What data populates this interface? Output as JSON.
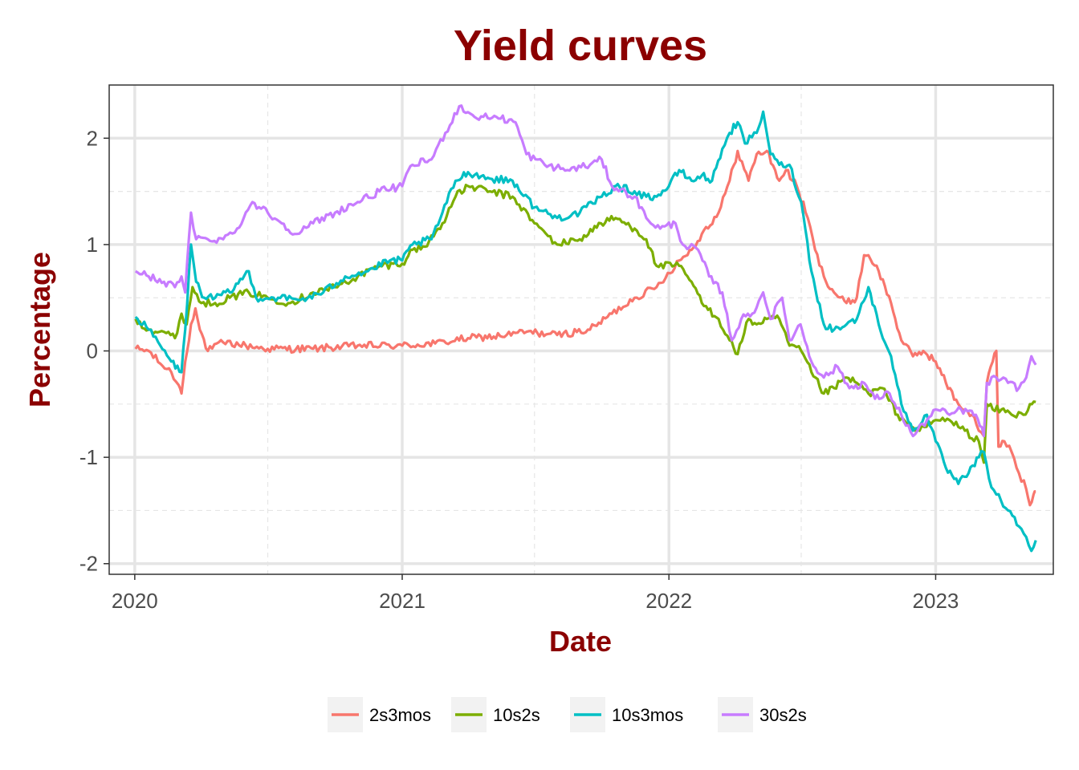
{
  "chart_data": {
    "type": "line",
    "title": "Yield curves",
    "xlabel": "Date",
    "ylabel": "Percentage",
    "x_tick_labels": [
      "2020",
      "2021",
      "2022",
      "2023"
    ],
    "y_tick_labels": [
      "-2",
      "-1",
      "0",
      "1",
      "2"
    ],
    "xlim": [
      "2019-11-27",
      "2023-06-11"
    ],
    "ylim": [
      -2.1,
      2.5
    ],
    "grid": true,
    "legend_position": "bottom",
    "series": [
      {
        "name": "2s3mos",
        "color": "#F8766D",
        "points": [
          [
            "2020-01-02",
            0.02
          ],
          [
            "2020-01-20",
            0.0
          ],
          [
            "2020-02-05",
            -0.12
          ],
          [
            "2020-02-20",
            -0.2
          ],
          [
            "2020-03-01",
            -0.32
          ],
          [
            "2020-03-05",
            -0.4
          ],
          [
            "2020-03-10",
            -0.1
          ],
          [
            "2020-03-18",
            0.25
          ],
          [
            "2020-03-24",
            0.4
          ],
          [
            "2020-03-30",
            0.2
          ],
          [
            "2020-04-10",
            0.0
          ],
          [
            "2020-05-01",
            0.08
          ],
          [
            "2020-06-01",
            0.05
          ],
          [
            "2020-07-01",
            0.02
          ],
          [
            "2020-09-01",
            0.02
          ],
          [
            "2020-11-01",
            0.05
          ],
          [
            "2021-01-01",
            0.05
          ],
          [
            "2021-02-15",
            0.07
          ],
          [
            "2021-04-01",
            0.12
          ],
          [
            "2021-05-15",
            0.14
          ],
          [
            "2021-06-20",
            0.18
          ],
          [
            "2021-08-01",
            0.15
          ],
          [
            "2021-09-15",
            0.2
          ],
          [
            "2021-10-15",
            0.35
          ],
          [
            "2021-11-15",
            0.5
          ],
          [
            "2021-12-15",
            0.6
          ],
          [
            "2022-01-15",
            0.85
          ],
          [
            "2022-02-01",
            0.95
          ],
          [
            "2022-02-15",
            1.1
          ],
          [
            "2022-03-10",
            1.3
          ],
          [
            "2022-03-25",
            1.6
          ],
          [
            "2022-04-05",
            1.88
          ],
          [
            "2022-04-20",
            1.6
          ],
          [
            "2022-05-01",
            1.85
          ],
          [
            "2022-05-15",
            1.88
          ],
          [
            "2022-06-01",
            1.6
          ],
          [
            "2022-06-10",
            1.7
          ],
          [
            "2022-06-25",
            1.55
          ],
          [
            "2022-07-10",
            1.25
          ],
          [
            "2022-07-20",
            0.95
          ],
          [
            "2022-08-01",
            0.7
          ],
          [
            "2022-08-15",
            0.55
          ],
          [
            "2022-09-01",
            0.45
          ],
          [
            "2022-09-15",
            0.5
          ],
          [
            "2022-09-25",
            0.9
          ],
          [
            "2022-10-01",
            0.9
          ],
          [
            "2022-10-15",
            0.75
          ],
          [
            "2022-11-01",
            0.45
          ],
          [
            "2022-11-15",
            0.1
          ],
          [
            "2022-12-01",
            -0.05
          ],
          [
            "2022-12-15",
            0.0
          ],
          [
            "2023-01-01",
            -0.1
          ],
          [
            "2023-01-15",
            -0.3
          ],
          [
            "2023-02-01",
            -0.5
          ],
          [
            "2023-02-20",
            -0.6
          ],
          [
            "2023-03-01",
            -0.75
          ],
          [
            "2023-03-08",
            -0.8
          ],
          [
            "2023-03-12",
            -0.3
          ],
          [
            "2023-03-20",
            -0.1
          ],
          [
            "2023-03-25",
            0.0
          ],
          [
            "2023-03-28",
            -0.9
          ],
          [
            "2023-04-05",
            -0.85
          ],
          [
            "2023-04-15",
            -0.95
          ],
          [
            "2023-04-25",
            -1.15
          ],
          [
            "2023-05-05",
            -1.3
          ],
          [
            "2023-05-10",
            -1.45
          ],
          [
            "2023-05-15",
            -1.35
          ],
          [
            "2023-05-18",
            -1.32
          ]
        ]
      },
      {
        "name": "10s2s",
        "color": "#7CAE00",
        "points": [
          [
            "2020-01-02",
            0.3
          ],
          [
            "2020-01-20",
            0.2
          ],
          [
            "2020-02-10",
            0.18
          ],
          [
            "2020-02-25",
            0.12
          ],
          [
            "2020-03-05",
            0.35
          ],
          [
            "2020-03-12",
            0.25
          ],
          [
            "2020-03-20",
            0.6
          ],
          [
            "2020-04-01",
            0.45
          ],
          [
            "2020-04-20",
            0.45
          ],
          [
            "2020-05-10",
            0.5
          ],
          [
            "2020-06-05",
            0.55
          ],
          [
            "2020-07-01",
            0.5
          ],
          [
            "2020-08-01",
            0.45
          ],
          [
            "2020-09-01",
            0.55
          ],
          [
            "2020-10-01",
            0.6
          ],
          [
            "2020-11-01",
            0.7
          ],
          [
            "2020-12-01",
            0.8
          ],
          [
            "2021-01-01",
            0.82
          ],
          [
            "2021-01-15",
            0.95
          ],
          [
            "2021-02-01",
            0.98
          ],
          [
            "2021-02-25",
            1.2
          ],
          [
            "2021-03-15",
            1.45
          ],
          [
            "2021-04-01",
            1.55
          ],
          [
            "2021-05-01",
            1.5
          ],
          [
            "2021-06-01",
            1.45
          ],
          [
            "2021-07-01",
            1.2
          ],
          [
            "2021-08-01",
            1.0
          ],
          [
            "2021-09-01",
            1.05
          ],
          [
            "2021-09-30",
            1.2
          ],
          [
            "2021-10-20",
            1.25
          ],
          [
            "2021-11-15",
            1.15
          ],
          [
            "2021-12-01",
            1.05
          ],
          [
            "2021-12-15",
            0.8
          ],
          [
            "2022-01-15",
            0.8
          ],
          [
            "2022-02-01",
            0.65
          ],
          [
            "2022-02-15",
            0.45
          ],
          [
            "2022-03-10",
            0.3
          ],
          [
            "2022-03-25",
            0.1
          ],
          [
            "2022-04-05",
            -0.03
          ],
          [
            "2022-04-20",
            0.3
          ],
          [
            "2022-05-01",
            0.25
          ],
          [
            "2022-05-15",
            0.3
          ],
          [
            "2022-06-01",
            0.3
          ],
          [
            "2022-06-15",
            0.05
          ],
          [
            "2022-07-01",
            0.0
          ],
          [
            "2022-07-15",
            -0.2
          ],
          [
            "2022-08-01",
            -0.4
          ],
          [
            "2022-08-15",
            -0.35
          ],
          [
            "2022-09-01",
            -0.25
          ],
          [
            "2022-09-15",
            -0.3
          ],
          [
            "2022-10-01",
            -0.4
          ],
          [
            "2022-10-20",
            -0.35
          ],
          [
            "2022-11-10",
            -0.6
          ],
          [
            "2022-11-25",
            -0.7
          ],
          [
            "2022-12-10",
            -0.75
          ],
          [
            "2023-01-01",
            -0.65
          ],
          [
            "2023-01-20",
            -0.65
          ],
          [
            "2023-02-10",
            -0.75
          ],
          [
            "2023-03-01",
            -0.85
          ],
          [
            "2023-03-08",
            -1.05
          ],
          [
            "2023-03-12",
            -0.5
          ],
          [
            "2023-03-20",
            -0.55
          ],
          [
            "2023-04-01",
            -0.55
          ],
          [
            "2023-04-15",
            -0.6
          ],
          [
            "2023-05-01",
            -0.6
          ],
          [
            "2023-05-10",
            -0.5
          ],
          [
            "2023-05-18",
            -0.48
          ]
        ]
      },
      {
        "name": "10s3mos",
        "color": "#00BFC4",
        "points": [
          [
            "2020-01-02",
            0.32
          ],
          [
            "2020-01-20",
            0.2
          ],
          [
            "2020-02-05",
            0.05
          ],
          [
            "2020-02-20",
            -0.1
          ],
          [
            "2020-03-05",
            -0.2
          ],
          [
            "2020-03-10",
            0.2
          ],
          [
            "2020-03-18",
            1.0
          ],
          [
            "2020-03-25",
            0.65
          ],
          [
            "2020-04-05",
            0.5
          ],
          [
            "2020-04-20",
            0.5
          ],
          [
            "2020-05-10",
            0.55
          ],
          [
            "2020-06-05",
            0.75
          ],
          [
            "2020-06-15",
            0.5
          ],
          [
            "2020-07-15",
            0.5
          ],
          [
            "2020-08-15",
            0.48
          ],
          [
            "2020-09-15",
            0.55
          ],
          [
            "2020-10-15",
            0.7
          ],
          [
            "2020-11-15",
            0.75
          ],
          [
            "2020-12-15",
            0.85
          ],
          [
            "2021-01-01",
            0.85
          ],
          [
            "2021-01-15",
            1.0
          ],
          [
            "2021-02-10",
            1.05
          ],
          [
            "2021-02-25",
            1.3
          ],
          [
            "2021-03-15",
            1.6
          ],
          [
            "2021-04-01",
            1.68
          ],
          [
            "2021-05-01",
            1.62
          ],
          [
            "2021-06-01",
            1.6
          ],
          [
            "2021-07-01",
            1.35
          ],
          [
            "2021-08-01",
            1.25
          ],
          [
            "2021-09-01",
            1.3
          ],
          [
            "2021-10-01",
            1.45
          ],
          [
            "2021-10-20",
            1.55
          ],
          [
            "2021-11-15",
            1.5
          ],
          [
            "2021-12-01",
            1.45
          ],
          [
            "2021-12-15",
            1.45
          ],
          [
            "2022-01-01",
            1.55
          ],
          [
            "2022-01-15",
            1.7
          ],
          [
            "2022-02-01",
            1.6
          ],
          [
            "2022-02-15",
            1.65
          ],
          [
            "2022-03-01",
            1.6
          ],
          [
            "2022-03-15",
            1.9
          ],
          [
            "2022-03-25",
            2.05
          ],
          [
            "2022-04-05",
            2.15
          ],
          [
            "2022-04-15",
            1.95
          ],
          [
            "2022-05-01",
            2.05
          ],
          [
            "2022-05-10",
            2.25
          ],
          [
            "2022-05-20",
            1.85
          ],
          [
            "2022-06-01",
            1.75
          ],
          [
            "2022-06-15",
            1.75
          ],
          [
            "2022-07-01",
            1.4
          ],
          [
            "2022-07-15",
            0.75
          ],
          [
            "2022-08-01",
            0.25
          ],
          [
            "2022-08-15",
            0.2
          ],
          [
            "2022-09-01",
            0.25
          ],
          [
            "2022-09-15",
            0.3
          ],
          [
            "2022-10-01",
            0.6
          ],
          [
            "2022-10-15",
            0.25
          ],
          [
            "2022-11-01",
            -0.05
          ],
          [
            "2022-11-15",
            -0.5
          ],
          [
            "2022-12-01",
            -0.75
          ],
          [
            "2022-12-20",
            -0.6
          ],
          [
            "2023-01-01",
            -0.85
          ],
          [
            "2023-01-15",
            -1.1
          ],
          [
            "2023-02-01",
            -1.25
          ],
          [
            "2023-02-15",
            -1.15
          ],
          [
            "2023-03-01",
            -1.0
          ],
          [
            "2023-03-08",
            -0.95
          ],
          [
            "2023-03-15",
            -1.2
          ],
          [
            "2023-03-25",
            -1.35
          ],
          [
            "2023-04-10",
            -1.5
          ],
          [
            "2023-04-25",
            -1.65
          ],
          [
            "2023-05-05",
            -1.75
          ],
          [
            "2023-05-12",
            -1.88
          ],
          [
            "2023-05-18",
            -1.78
          ]
        ]
      },
      {
        "name": "30s2s",
        "color": "#C77CFF",
        "points": [
          [
            "2020-01-02",
            0.75
          ],
          [
            "2020-01-20",
            0.7
          ],
          [
            "2020-02-10",
            0.65
          ],
          [
            "2020-02-25",
            0.6
          ],
          [
            "2020-03-05",
            0.7
          ],
          [
            "2020-03-10",
            0.55
          ],
          [
            "2020-03-18",
            1.3
          ],
          [
            "2020-03-25",
            1.05
          ],
          [
            "2020-04-10",
            1.05
          ],
          [
            "2020-05-01",
            1.05
          ],
          [
            "2020-05-20",
            1.15
          ],
          [
            "2020-06-10",
            1.4
          ],
          [
            "2020-07-01",
            1.3
          ],
          [
            "2020-07-20",
            1.2
          ],
          [
            "2020-08-10",
            1.1
          ],
          [
            "2020-09-01",
            1.2
          ],
          [
            "2020-10-01",
            1.3
          ],
          [
            "2020-11-01",
            1.4
          ],
          [
            "2020-12-01",
            1.5
          ],
          [
            "2021-01-01",
            1.55
          ],
          [
            "2021-01-15",
            1.75
          ],
          [
            "2021-02-10",
            1.8
          ],
          [
            "2021-03-01",
            2.05
          ],
          [
            "2021-03-20",
            2.3
          ],
          [
            "2021-04-10",
            2.2
          ],
          [
            "2021-05-10",
            2.2
          ],
          [
            "2021-06-05",
            2.15
          ],
          [
            "2021-06-20",
            1.85
          ],
          [
            "2021-07-15",
            1.75
          ],
          [
            "2021-08-15",
            1.7
          ],
          [
            "2021-09-15",
            1.75
          ],
          [
            "2021-10-01",
            1.8
          ],
          [
            "2021-10-15",
            1.55
          ],
          [
            "2021-11-15",
            1.45
          ],
          [
            "2021-12-01",
            1.25
          ],
          [
            "2021-12-20",
            1.15
          ],
          [
            "2022-01-10",
            1.2
          ],
          [
            "2022-01-20",
            1.0
          ],
          [
            "2022-02-10",
            0.95
          ],
          [
            "2022-02-25",
            0.7
          ],
          [
            "2022-03-15",
            0.55
          ],
          [
            "2022-03-28",
            0.1
          ],
          [
            "2022-04-10",
            0.3
          ],
          [
            "2022-04-25",
            0.35
          ],
          [
            "2022-05-10",
            0.55
          ],
          [
            "2022-05-20",
            0.3
          ],
          [
            "2022-06-05",
            0.5
          ],
          [
            "2022-06-15",
            0.1
          ],
          [
            "2022-06-30",
            0.25
          ],
          [
            "2022-07-15",
            -0.1
          ],
          [
            "2022-08-01",
            -0.25
          ],
          [
            "2022-08-20",
            -0.15
          ],
          [
            "2022-09-05",
            -0.35
          ],
          [
            "2022-09-25",
            -0.3
          ],
          [
            "2022-10-10",
            -0.45
          ],
          [
            "2022-10-30",
            -0.4
          ],
          [
            "2022-11-15",
            -0.6
          ],
          [
            "2022-12-01",
            -0.8
          ],
          [
            "2022-12-20",
            -0.65
          ],
          [
            "2023-01-01",
            -0.55
          ],
          [
            "2023-01-20",
            -0.6
          ],
          [
            "2023-02-05",
            -0.55
          ],
          [
            "2023-02-25",
            -0.6
          ],
          [
            "2023-03-08",
            -0.8
          ],
          [
            "2023-03-12",
            -0.3
          ],
          [
            "2023-03-25",
            -0.25
          ],
          [
            "2023-04-10",
            -0.3
          ],
          [
            "2023-04-25",
            -0.35
          ],
          [
            "2023-05-05",
            -0.25
          ],
          [
            "2023-05-12",
            -0.05
          ],
          [
            "2023-05-18",
            -0.13
          ]
        ]
      }
    ]
  }
}
